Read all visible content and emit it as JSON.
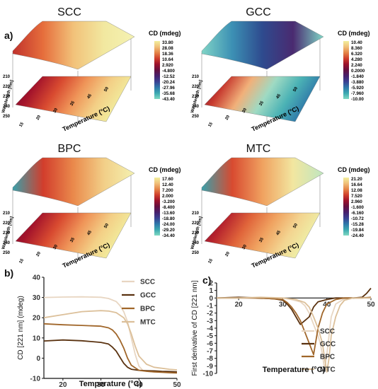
{
  "panel_labels": {
    "a": "a)",
    "b": "b)",
    "c": "c)"
  },
  "surface_plots": [
    {
      "id": "scc",
      "title": "SCC",
      "colorbar_title": "CD (mdeg)",
      "colorbar_ticks": [
        "33.80",
        "28.08",
        "18.36",
        "10.64",
        "2.920",
        "-4.800",
        "-12.52",
        "-20.24",
        "-27.96",
        "-35.68",
        "-43.40"
      ],
      "wavelength_label": "Wavelength [nm]",
      "wavelength_ticks": [
        "210",
        "220",
        "230",
        "240",
        "250"
      ],
      "temperature_label": "Temperature (°C)",
      "temperature_ticks": [
        "15",
        "20",
        "30",
        "35",
        "45",
        "50"
      ]
    },
    {
      "id": "gcc",
      "title": "GCC",
      "colorbar_title": "CD (mdeg)",
      "colorbar_ticks": [
        "10.40",
        "8.360",
        "6.320",
        "4.280",
        "2.240",
        "0.2000",
        "-1.840",
        "-3.880",
        "-5.920",
        "-7.960",
        "-10.00"
      ],
      "wavelength_label": "Wavelength [nm]",
      "wavelength_ticks": [
        "210",
        "220",
        "230",
        "240",
        "250"
      ],
      "temperature_label": "Temperature (°C)",
      "temperature_ticks": [
        "15",
        "20",
        "30",
        "35",
        "45",
        "50"
      ]
    },
    {
      "id": "bpc",
      "title": "BPC",
      "colorbar_title": "CD (mdeg)",
      "colorbar_ticks": [
        "17.60",
        "12.40",
        "7.200",
        "2.000",
        "-3.200",
        "-8.400",
        "-13.60",
        "-18.80",
        "-24.00",
        "-29.20",
        "-34.40"
      ],
      "wavelength_label": "Wavelength [nm]",
      "wavelength_ticks": [
        "210",
        "220",
        "230",
        "240",
        "250"
      ],
      "temperature_label": "Temperature (°C)",
      "temperature_ticks": [
        "15",
        "20",
        "30",
        "35",
        "45",
        "50"
      ]
    },
    {
      "id": "mtc",
      "title": "MTC",
      "colorbar_title": "CD (mdeg)",
      "colorbar_ticks": [
        "21.20",
        "16.64",
        "12.08",
        "7.520",
        "2.960",
        "-1.600",
        "-6.160",
        "-10.72",
        "-15.28",
        "-19.84",
        "-24.40"
      ],
      "wavelength_label": "Wavelength [nm]",
      "wavelength_ticks": [
        "210",
        "220",
        "230",
        "240",
        "250"
      ],
      "temperature_label": "Temperature (°C)",
      "temperature_ticks": [
        "15",
        "20",
        "30",
        "35",
        "45",
        "50"
      ]
    }
  ],
  "colorscale": [
    "#f2f0a0",
    "#f2c27a",
    "#e88a4a",
    "#d2452d",
    "#a3132b",
    "#6b0f3a",
    "#4a1a6a",
    "#3a3f8f",
    "#2e74a8",
    "#3aa8b0",
    "#7ed8c0"
  ],
  "chart_data": [
    {
      "id": "b",
      "type": "line",
      "xlabel": "Temperature (°C)",
      "ylabel": "CD [221 nm] (mdeg)",
      "xlim": [
        15,
        50
      ],
      "ylim": [
        -10,
        40
      ],
      "xticks": [
        20,
        30,
        40,
        50
      ],
      "yticks": [
        -10,
        0,
        10,
        20,
        30,
        40
      ],
      "legend_position": "top-right",
      "series": [
        {
          "name": "SCC",
          "color": "#e8d6c2",
          "x": [
            15,
            20,
            25,
            30,
            32,
            34,
            35,
            36,
            37,
            38,
            39,
            40,
            41,
            42,
            44,
            46,
            48,
            50
          ],
          "y": [
            30,
            30.2,
            30.3,
            30.1,
            29.5,
            28,
            26,
            23,
            18,
            10,
            2,
            -4,
            -6,
            -6.5,
            -6.8,
            -7,
            -7,
            -7.2
          ]
        },
        {
          "name": "GCC",
          "color": "#5a3210",
          "x": [
            15,
            20,
            25,
            30,
            32,
            33,
            34,
            35,
            36,
            37,
            38,
            40,
            42,
            44,
            46,
            48,
            50
          ],
          "y": [
            8.5,
            9,
            8.6,
            7.8,
            7,
            5.5,
            3.5,
            0.5,
            -2.5,
            -4.5,
            -5.5,
            -6,
            -6.2,
            -6.3,
            -6.5,
            -6.6,
            -6.8
          ]
        },
        {
          "name": "BPC",
          "color": "#a0662a",
          "x": [
            15,
            20,
            25,
            30,
            32,
            33,
            34,
            35,
            36,
            37,
            38,
            40,
            42,
            44,
            46,
            48,
            50
          ],
          "y": [
            17,
            16.5,
            16.2,
            15.8,
            15,
            14,
            12,
            9,
            5,
            0,
            -3.5,
            -6,
            -6.5,
            -6.8,
            -7,
            -7.2,
            -7.3
          ]
        },
        {
          "name": "MTC",
          "color": "#dcc09a",
          "x": [
            15,
            20,
            25,
            30,
            32,
            34,
            36,
            37,
            38,
            39,
            40,
            42,
            44,
            46,
            48,
            50
          ],
          "y": [
            20,
            21.5,
            23,
            23.5,
            23.3,
            22.5,
            20,
            17,
            12,
            6,
            1,
            -3,
            -4.5,
            -5,
            -5.5,
            -5.8
          ]
        }
      ]
    },
    {
      "id": "c",
      "type": "line",
      "xlabel": "Temperature (°C)",
      "ylabel": "First derivative of CD [221 nm]",
      "xlim": [
        15,
        50
      ],
      "ylim": [
        -10,
        2
      ],
      "xticks": [
        20,
        30,
        40,
        50
      ],
      "yticks": [
        -10,
        -9,
        -8,
        -7,
        -6,
        -5,
        -4,
        -3,
        -2,
        -1,
        0,
        1,
        2
      ],
      "legend_position": "bottom-right",
      "series": [
        {
          "name": "SCC",
          "color": "#e8d6c2",
          "x": [
            15,
            20,
            25,
            30,
            32,
            34,
            35,
            36,
            37,
            38,
            38.5,
            39,
            39.5,
            40,
            40.5,
            41,
            42,
            44,
            46,
            48,
            50
          ],
          "y": [
            0,
            0.1,
            -0.1,
            0,
            -0.2,
            -0.5,
            -1,
            -2,
            -3.5,
            -5,
            -6,
            -7.5,
            -9.5,
            -7.5,
            -5,
            -2.5,
            -0.8,
            -0.1,
            0,
            0.1,
            0
          ]
        },
        {
          "name": "GCC",
          "color": "#5a3210",
          "x": [
            15,
            20,
            25,
            28,
            30,
            31,
            32,
            33,
            34,
            35,
            36,
            37,
            38,
            40,
            42,
            44,
            46,
            48,
            49,
            50
          ],
          "y": [
            0,
            0.1,
            0,
            -0.1,
            -0.3,
            -0.8,
            -1.5,
            -2.5,
            -3.5,
            -3,
            -2.5,
            -1.2,
            -0.5,
            -0.2,
            0,
            0,
            0,
            0.1,
            0.6,
            1.3
          ]
        },
        {
          "name": "BPC",
          "color": "#a0662a",
          "x": [
            15,
            20,
            25,
            30,
            31,
            32,
            33,
            34,
            35,
            36,
            37,
            38,
            39,
            40,
            42,
            44,
            46,
            48,
            50
          ],
          "y": [
            0,
            0,
            0,
            -0.2,
            -0.6,
            -1.2,
            -2,
            -3,
            -4.5,
            -6,
            -7.5,
            -4,
            -2,
            -0.8,
            -0.2,
            0,
            0,
            0,
            0.1
          ]
        },
        {
          "name": "MTC",
          "color": "#dcc09a",
          "x": [
            15,
            20,
            25,
            30,
            33,
            35,
            36,
            37,
            38,
            39,
            39.5,
            40,
            40.5,
            41,
            42,
            43,
            44,
            46,
            48,
            50
          ],
          "y": [
            0,
            0,
            0.1,
            0,
            -0.2,
            -0.6,
            -1.2,
            -2.5,
            -4,
            -6,
            -8,
            -9.8,
            -8,
            -5,
            -2.5,
            -1,
            -0.3,
            0,
            0,
            0
          ]
        }
      ]
    }
  ]
}
